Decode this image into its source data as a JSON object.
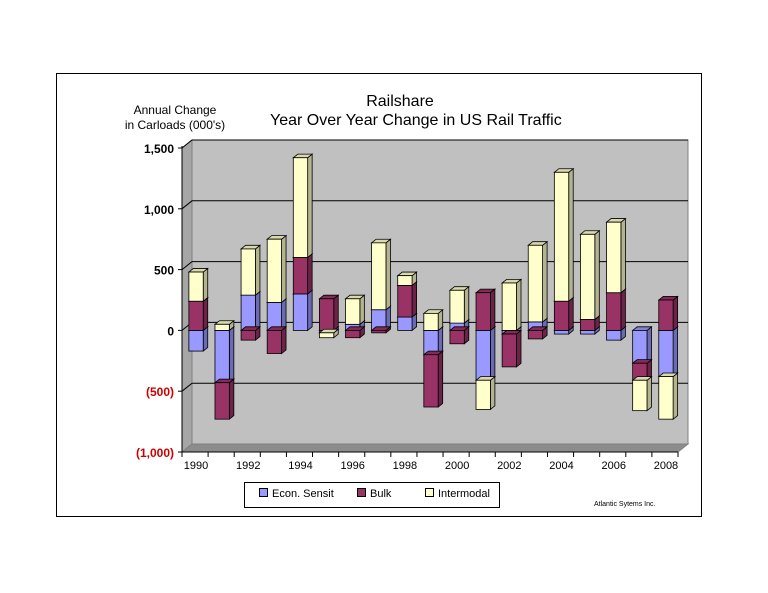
{
  "chart_data": {
    "type": "bar",
    "stacked": true,
    "title": "Railshare",
    "subtitle": "Year Over Year Change in US Rail Traffic",
    "ylabel": "Annual Change in Carloads (000's)",
    "xlabel": "",
    "ylim": [
      -1000,
      1500
    ],
    "y_ticks": [
      -1000,
      -500,
      0,
      500,
      1000,
      1500
    ],
    "y_tick_labels": [
      "(1,000)",
      "(500)",
      "0",
      "500",
      "1,000",
      "1,500"
    ],
    "x_tick_labels": [
      "1990",
      "1992",
      "1994",
      "1996",
      "1998",
      "2000",
      "2002",
      "2004",
      "2006",
      "2008"
    ],
    "categories": [
      "1990",
      "1991",
      "1992",
      "1993",
      "1994",
      "1995",
      "1996",
      "1997",
      "1998",
      "1999",
      "2000",
      "2001",
      "2002",
      "2003",
      "2004",
      "2005",
      "2006",
      "2007",
      "2008"
    ],
    "series": [
      {
        "name": "Econ. Sensit",
        "color": "#9999ff",
        "values": [
          -170,
          -430,
          290,
          230,
          300,
          -20,
          50,
          170,
          110,
          -200,
          60,
          -410,
          -30,
          70,
          -30,
          -30,
          -80,
          -270,
          -380
        ]
      },
      {
        "name": "Bulk",
        "color": "#993366",
        "values": [
          240,
          -300,
          -80,
          -190,
          300,
          260,
          -60,
          -20,
          260,
          -430,
          -110,
          310,
          -270,
          -70,
          240,
          90,
          310,
          -140,
          250
        ]
      },
      {
        "name": "Intermodal",
        "color": "#ffffcc",
        "values": [
          240,
          50,
          380,
          520,
          820,
          -40,
          210,
          550,
          80,
          140,
          270,
          -240,
          390,
          630,
          1060,
          700,
          580,
          -250,
          -350
        ]
      }
    ],
    "grid": true,
    "legend_position": "bottom",
    "colors": {
      "plot_background": "#c0c0c0",
      "negative_tick_label": "#cc0000"
    }
  },
  "credit": "Atlantic Sytems Inc."
}
